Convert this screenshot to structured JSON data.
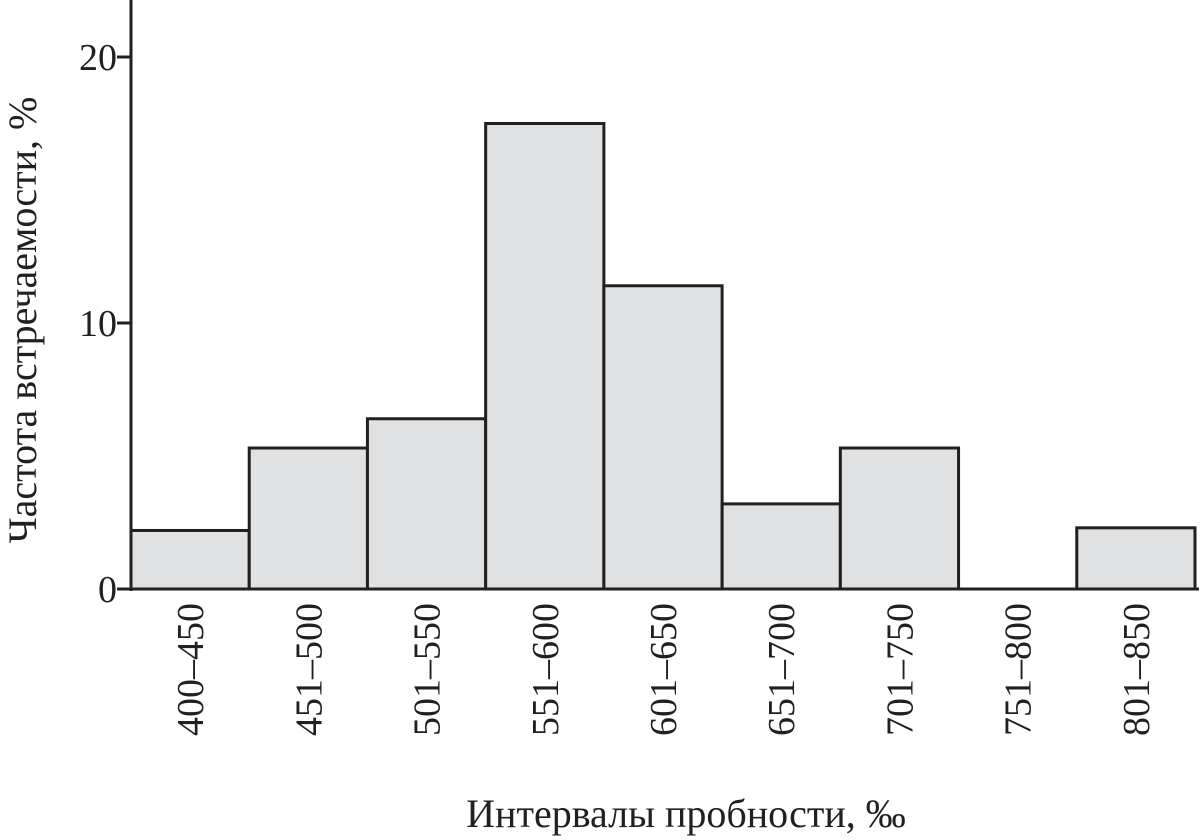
{
  "chart_data": {
    "type": "bar",
    "title": "",
    "xlabel": "Интервалы пробности, ‰",
    "ylabel": "Частота встречаемости, %",
    "ylim": [
      0,
      22
    ],
    "yticks": [
      0,
      10,
      20
    ],
    "grid": false,
    "categories": [
      "400–450",
      "451–500",
      "501–550",
      "551–600",
      "601–650",
      "651–700",
      "701–750",
      "751–800",
      "801–850"
    ],
    "values": [
      2.2,
      5.3,
      6.4,
      17.5,
      11.4,
      3.2,
      5.3,
      0,
      2.3
    ]
  }
}
